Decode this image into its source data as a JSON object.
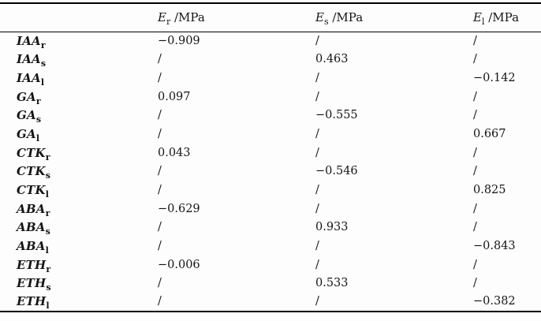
{
  "table": {
    "header": [
      {
        "symbol": "E",
        "sub": "r",
        "unit": " /MPa"
      },
      {
        "symbol": "E",
        "sub": "s",
        "unit": " /MPa"
      },
      {
        "symbol": "E",
        "sub": "l",
        "unit": " /MPa"
      }
    ],
    "rows": [
      {
        "name": "IAA",
        "sub": "r",
        "values": [
          "−0.909",
          "/",
          "/"
        ]
      },
      {
        "name": "IAA",
        "sub": "s",
        "values": [
          "/",
          "0.463",
          "/"
        ]
      },
      {
        "name": "IAA",
        "sub": "l",
        "values": [
          "/",
          "/",
          "−0.142"
        ]
      },
      {
        "name": "GA",
        "sub": "r",
        "values": [
          "0.097",
          "/",
          "/"
        ]
      },
      {
        "name": "GA",
        "sub": "s",
        "values": [
          "/",
          "−0.555",
          "/"
        ]
      },
      {
        "name": "GA",
        "sub": "l",
        "values": [
          "/",
          "/",
          "0.667"
        ]
      },
      {
        "name": "CTK",
        "sub": "r",
        "values": [
          "0.043",
          "/",
          "/"
        ]
      },
      {
        "name": "CTK",
        "sub": "s",
        "values": [
          "/",
          "−0.546",
          "/"
        ]
      },
      {
        "name": "CTK",
        "sub": "l",
        "values": [
          "/",
          "/",
          "0.825"
        ]
      },
      {
        "name": "ABA",
        "sub": "r",
        "values": [
          "−0.629",
          "/",
          "/"
        ]
      },
      {
        "name": "ABA",
        "sub": "s",
        "values": [
          "/",
          "0.933",
          "/"
        ]
      },
      {
        "name": "ABA",
        "sub": "l",
        "values": [
          "/",
          "/",
          "−0.843"
        ]
      },
      {
        "name": "ETH",
        "sub": "r",
        "values": [
          "−0.006",
          "/",
          "/"
        ]
      },
      {
        "name": "ETH",
        "sub": "s",
        "values": [
          "/",
          "0.533",
          "/"
        ]
      },
      {
        "name": "ETH",
        "sub": "l",
        "values": [
          "/",
          "/",
          "−0.382"
        ]
      }
    ]
  },
  "chart_data": {
    "type": "table",
    "title": "",
    "columns": [
      "",
      "Er /MPa",
      "Es /MPa",
      "El /MPa"
    ],
    "rows": [
      [
        "IAAr",
        -0.909,
        null,
        null
      ],
      [
        "IAAs",
        null,
        0.463,
        null
      ],
      [
        "IAAl",
        null,
        null,
        -0.142
      ],
      [
        "GAr",
        0.097,
        null,
        null
      ],
      [
        "GAs",
        null,
        -0.555,
        null
      ],
      [
        "GAl",
        null,
        null,
        0.667
      ],
      [
        "CTKr",
        0.043,
        null,
        null
      ],
      [
        "CTKs",
        null,
        -0.546,
        null
      ],
      [
        "CTKl",
        null,
        null,
        0.825
      ],
      [
        "ABAr",
        -0.629,
        null,
        null
      ],
      [
        "ABAs",
        null,
        0.933,
        null
      ],
      [
        "ABAl",
        null,
        null,
        -0.843
      ],
      [
        "ETHr",
        -0.006,
        null,
        null
      ],
      [
        "ETHs",
        null,
        0.533,
        null
      ],
      [
        "ETHl",
        null,
        null,
        -0.382
      ]
    ],
    "empty_cell_marker": "/"
  }
}
